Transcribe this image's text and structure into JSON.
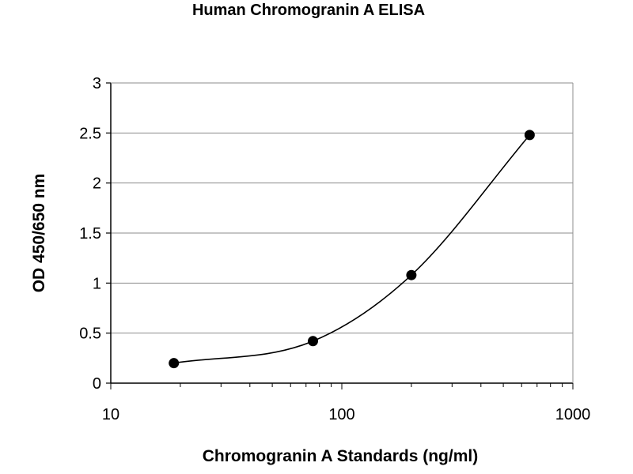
{
  "chart_data": {
    "type": "scatter",
    "title": "Human Chromogranin A ELISA",
    "xlabel": "Chromogranin A Standards (ng/ml)",
    "ylabel": "OD 450/650 nm",
    "x_scale": "log",
    "xlim": [
      10,
      1000
    ],
    "ylim": [
      0,
      3
    ],
    "x_ticks": [
      "10",
      "100",
      "1000"
    ],
    "y_ticks": [
      "0",
      "0.5",
      "1",
      "1.5",
      "2",
      "2.5",
      "3"
    ],
    "grid": "horizontal",
    "legend": "none",
    "series": [
      {
        "points": [
          {
            "x": 18.75,
            "y": 0.2
          },
          {
            "x": 75,
            "y": 0.42
          },
          {
            "x": 200,
            "y": 1.08
          },
          {
            "x": 650,
            "y": 2.48
          }
        ],
        "fit_line": true,
        "color": "#000000"
      }
    ]
  }
}
